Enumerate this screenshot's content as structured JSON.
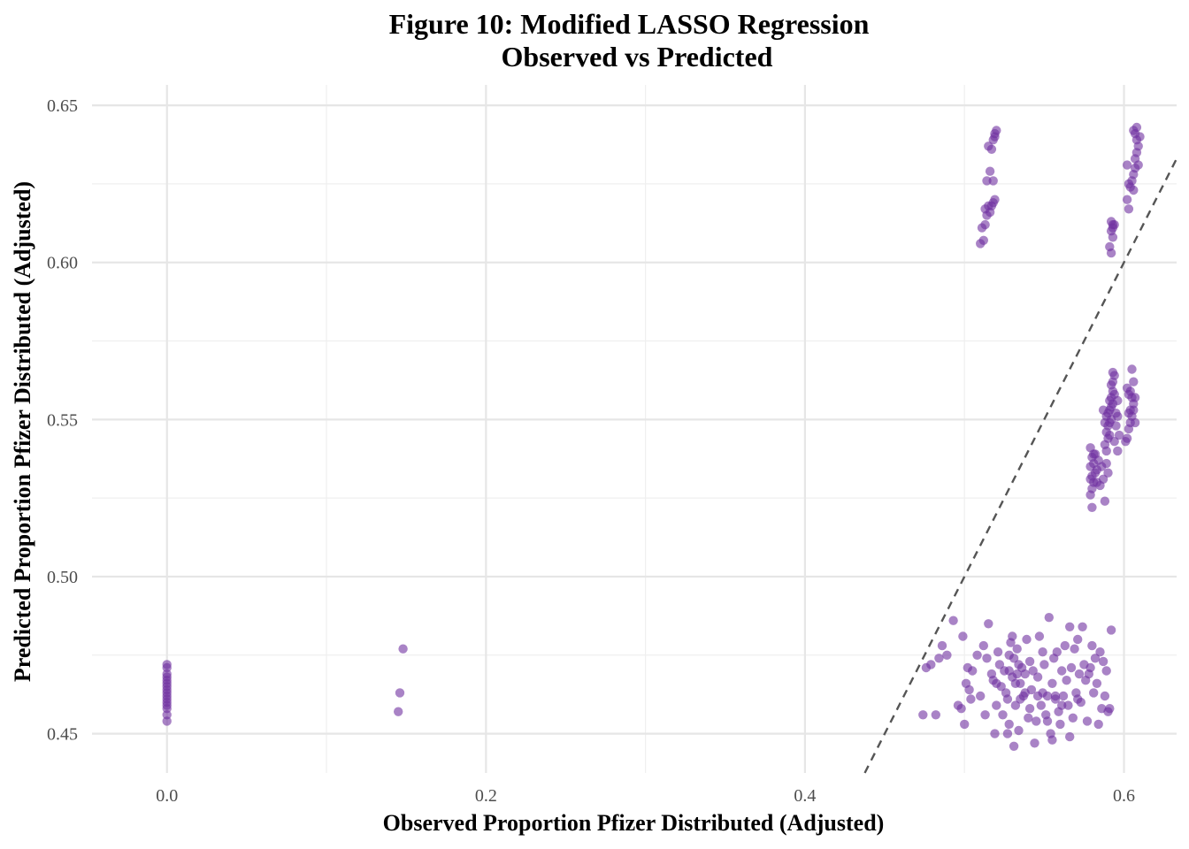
{
  "chart_data": {
    "type": "scatter",
    "title": "Figure 10: Modified LASSO Regression",
    "subtitle": "Observed vs Predicted",
    "xlabel": "Observed Proportion Pfizer Distributed (Adjusted)",
    "ylabel": "Predicted Proportion Pfizer Distributed (Adjusted)",
    "xlim": [
      -0.047,
      0.633
    ],
    "ylim": [
      0.4375,
      0.6565
    ],
    "x_ticks": [
      0.0,
      0.2,
      0.4,
      0.6
    ],
    "x_tick_labels": [
      "0.0",
      "0.2",
      "0.4",
      "0.6"
    ],
    "y_ticks": [
      0.45,
      0.5,
      0.55,
      0.6,
      0.65
    ],
    "y_tick_labels": [
      "0.45",
      "0.50",
      "0.55",
      "0.60",
      "0.65"
    ],
    "grid": true,
    "reference_line": {
      "type": "identity",
      "slope": 1,
      "intercept": 0,
      "style": "dashed",
      "color": "#555555"
    },
    "point_color": "#7030a0",
    "point_alpha": 0.6,
    "series": [
      {
        "points": [
          [
            0.0,
            0.472
          ],
          [
            0.0,
            0.471
          ],
          [
            0.0,
            0.469
          ],
          [
            0.0,
            0.468
          ],
          [
            0.0,
            0.467
          ],
          [
            0.0,
            0.466
          ],
          [
            0.0,
            0.465
          ],
          [
            0.0,
            0.464
          ],
          [
            0.0,
            0.463
          ],
          [
            0.0,
            0.462
          ],
          [
            0.0,
            0.461
          ],
          [
            0.0,
            0.46
          ],
          [
            0.0,
            0.459
          ],
          [
            0.0,
            0.458
          ],
          [
            0.0,
            0.456
          ],
          [
            0.0,
            0.454
          ],
          [
            0.148,
            0.477
          ],
          [
            0.146,
            0.463
          ],
          [
            0.145,
            0.457
          ],
          [
            0.51,
            0.606
          ],
          [
            0.512,
            0.607
          ],
          [
            0.511,
            0.611
          ],
          [
            0.513,
            0.612
          ],
          [
            0.514,
            0.615
          ],
          [
            0.513,
            0.617
          ],
          [
            0.515,
            0.618
          ],
          [
            0.516,
            0.616
          ],
          [
            0.517,
            0.618
          ],
          [
            0.518,
            0.619
          ],
          [
            0.519,
            0.62
          ],
          [
            0.514,
            0.626
          ],
          [
            0.516,
            0.629
          ],
          [
            0.518,
            0.626
          ],
          [
            0.515,
            0.637
          ],
          [
            0.517,
            0.636
          ],
          [
            0.518,
            0.639
          ],
          [
            0.519,
            0.64
          ],
          [
            0.519,
            0.641
          ],
          [
            0.52,
            0.642
          ],
          [
            0.602,
            0.62
          ],
          [
            0.603,
            0.617
          ],
          [
            0.604,
            0.624
          ],
          [
            0.603,
            0.625
          ],
          [
            0.605,
            0.626
          ],
          [
            0.602,
            0.631
          ],
          [
            0.606,
            0.628
          ],
          [
            0.607,
            0.63
          ],
          [
            0.609,
            0.631
          ],
          [
            0.607,
            0.633
          ],
          [
            0.608,
            0.635
          ],
          [
            0.609,
            0.637
          ],
          [
            0.608,
            0.639
          ],
          [
            0.61,
            0.64
          ],
          [
            0.607,
            0.641
          ],
          [
            0.606,
            0.642
          ],
          [
            0.608,
            0.643
          ],
          [
            0.606,
            0.623
          ],
          [
            0.592,
            0.603
          ],
          [
            0.591,
            0.605
          ],
          [
            0.593,
            0.608
          ],
          [
            0.592,
            0.61
          ],
          [
            0.593,
            0.611
          ],
          [
            0.594,
            0.612
          ],
          [
            0.592,
            0.613
          ],
          [
            0.593,
            0.612
          ],
          [
            0.58,
            0.522
          ],
          [
            0.579,
            0.526
          ],
          [
            0.58,
            0.528
          ],
          [
            0.581,
            0.53
          ],
          [
            0.579,
            0.531
          ],
          [
            0.58,
            0.532
          ],
          [
            0.582,
            0.533
          ],
          [
            0.583,
            0.534
          ],
          [
            0.585,
            0.529
          ],
          [
            0.581,
            0.536
          ],
          [
            0.579,
            0.535
          ],
          [
            0.58,
            0.538
          ],
          [
            0.582,
            0.539
          ],
          [
            0.579,
            0.541
          ],
          [
            0.584,
            0.537
          ],
          [
            0.586,
            0.535
          ],
          [
            0.587,
            0.531
          ],
          [
            0.588,
            0.524
          ],
          [
            0.583,
            0.53
          ],
          [
            0.581,
            0.539
          ],
          [
            0.59,
            0.533
          ],
          [
            0.589,
            0.536
          ],
          [
            0.588,
            0.542
          ],
          [
            0.59,
            0.544
          ],
          [
            0.589,
            0.546
          ],
          [
            0.59,
            0.548
          ],
          [
            0.591,
            0.549
          ],
          [
            0.592,
            0.55
          ],
          [
            0.589,
            0.551
          ],
          [
            0.59,
            0.552
          ],
          [
            0.591,
            0.553
          ],
          [
            0.592,
            0.554
          ],
          [
            0.593,
            0.555
          ],
          [
            0.591,
            0.556
          ],
          [
            0.592,
            0.557
          ],
          [
            0.594,
            0.558
          ],
          [
            0.593,
            0.559
          ],
          [
            0.592,
            0.561
          ],
          [
            0.593,
            0.562
          ],
          [
            0.594,
            0.564
          ],
          [
            0.593,
            0.565
          ],
          [
            0.595,
            0.548
          ],
          [
            0.596,
            0.551
          ],
          [
            0.597,
            0.545
          ],
          [
            0.594,
            0.543
          ],
          [
            0.595,
            0.552
          ],
          [
            0.596,
            0.556
          ],
          [
            0.588,
            0.549
          ],
          [
            0.587,
            0.553
          ],
          [
            0.589,
            0.54
          ],
          [
            0.591,
            0.545
          ],
          [
            0.596,
            0.54
          ],
          [
            0.602,
            0.544
          ],
          [
            0.603,
            0.547
          ],
          [
            0.604,
            0.549
          ],
          [
            0.605,
            0.551
          ],
          [
            0.603,
            0.552
          ],
          [
            0.604,
            0.553
          ],
          [
            0.606,
            0.555
          ],
          [
            0.605,
            0.557
          ],
          [
            0.603,
            0.558
          ],
          [
            0.604,
            0.559
          ],
          [
            0.602,
            0.56
          ],
          [
            0.606,
            0.562
          ],
          [
            0.605,
            0.566
          ],
          [
            0.607,
            0.557
          ],
          [
            0.606,
            0.553
          ],
          [
            0.601,
            0.543
          ],
          [
            0.607,
            0.549
          ],
          [
            0.474,
            0.456
          ],
          [
            0.476,
            0.471
          ],
          [
            0.479,
            0.472
          ],
          [
            0.482,
            0.456
          ],
          [
            0.484,
            0.474
          ],
          [
            0.486,
            0.478
          ],
          [
            0.489,
            0.475
          ],
          [
            0.493,
            0.486
          ],
          [
            0.496,
            0.459
          ],
          [
            0.498,
            0.458
          ],
          [
            0.499,
            0.481
          ],
          [
            0.501,
            0.466
          ],
          [
            0.5,
            0.453
          ],
          [
            0.502,
            0.471
          ],
          [
            0.503,
            0.464
          ],
          [
            0.504,
            0.461
          ],
          [
            0.505,
            0.47
          ],
          [
            0.508,
            0.475
          ],
          [
            0.51,
            0.462
          ],
          [
            0.512,
            0.478
          ],
          [
            0.513,
            0.456
          ],
          [
            0.514,
            0.474
          ],
          [
            0.515,
            0.485
          ],
          [
            0.517,
            0.469
          ],
          [
            0.518,
            0.467
          ],
          [
            0.519,
            0.45
          ],
          [
            0.52,
            0.459
          ],
          [
            0.521,
            0.476
          ],
          [
            0.522,
            0.472
          ],
          [
            0.523,
            0.465
          ],
          [
            0.524,
            0.456
          ],
          [
            0.525,
            0.47
          ],
          [
            0.526,
            0.463
          ],
          [
            0.527,
            0.461
          ],
          [
            0.528,
            0.453
          ],
          [
            0.529,
            0.479
          ],
          [
            0.53,
            0.481
          ],
          [
            0.53,
            0.468
          ],
          [
            0.531,
            0.474
          ],
          [
            0.532,
            0.459
          ],
          [
            0.533,
            0.477
          ],
          [
            0.534,
            0.472
          ],
          [
            0.535,
            0.466
          ],
          [
            0.536,
            0.471
          ],
          [
            0.537,
            0.462
          ],
          [
            0.538,
            0.469
          ],
          [
            0.539,
            0.48
          ],
          [
            0.54,
            0.455
          ],
          [
            0.541,
            0.473
          ],
          [
            0.542,
            0.464
          ],
          [
            0.543,
            0.47
          ],
          [
            0.544,
            0.447
          ],
          [
            0.545,
            0.454
          ],
          [
            0.546,
            0.468
          ],
          [
            0.547,
            0.481
          ],
          [
            0.548,
            0.459
          ],
          [
            0.549,
            0.476
          ],
          [
            0.55,
            0.472
          ],
          [
            0.551,
            0.456
          ],
          [
            0.552,
            0.462
          ],
          [
            0.553,
            0.487
          ],
          [
            0.554,
            0.45
          ],
          [
            0.555,
            0.466
          ],
          [
            0.556,
            0.474
          ],
          [
            0.557,
            0.461
          ],
          [
            0.558,
            0.476
          ],
          [
            0.559,
            0.457
          ],
          [
            0.56,
            0.453
          ],
          [
            0.561,
            0.47
          ],
          [
            0.562,
            0.462
          ],
          [
            0.563,
            0.478
          ],
          [
            0.564,
            0.467
          ],
          [
            0.565,
            0.459
          ],
          [
            0.566,
            0.484
          ],
          [
            0.567,
            0.471
          ],
          [
            0.568,
            0.455
          ],
          [
            0.569,
            0.477
          ],
          [
            0.57,
            0.463
          ],
          [
            0.571,
            0.48
          ],
          [
            0.572,
            0.469
          ],
          [
            0.573,
            0.46
          ],
          [
            0.574,
            0.484
          ],
          [
            0.575,
            0.472
          ],
          [
            0.576,
            0.467
          ],
          [
            0.577,
            0.454
          ],
          [
            0.578,
            0.469
          ],
          [
            0.579,
            0.471
          ],
          [
            0.58,
            0.478
          ],
          [
            0.581,
            0.463
          ],
          [
            0.582,
            0.474
          ],
          [
            0.583,
            0.466
          ],
          [
            0.584,
            0.453
          ],
          [
            0.585,
            0.476
          ],
          [
            0.586,
            0.458
          ],
          [
            0.587,
            0.473
          ],
          [
            0.588,
            0.462
          ],
          [
            0.589,
            0.47
          ],
          [
            0.59,
            0.457
          ],
          [
            0.591,
            0.458
          ],
          [
            0.592,
            0.483
          ],
          [
            0.527,
            0.45
          ],
          [
            0.531,
            0.446
          ],
          [
            0.534,
            0.451
          ],
          [
            0.538,
            0.463
          ],
          [
            0.541,
            0.458
          ],
          [
            0.546,
            0.462
          ],
          [
            0.549,
            0.463
          ],
          [
            0.552,
            0.454
          ],
          [
            0.557,
            0.462
          ],
          [
            0.561,
            0.459
          ],
          [
            0.566,
            0.449
          ],
          [
            0.571,
            0.461
          ],
          [
            0.528,
            0.475
          ],
          [
            0.532,
            0.466
          ],
          [
            0.535,
            0.461
          ],
          [
            0.555,
            0.448
          ],
          [
            0.52,
            0.466
          ],
          [
            0.528,
            0.47
          ],
          [
            0.533,
            0.469
          ]
        ]
      }
    ]
  }
}
